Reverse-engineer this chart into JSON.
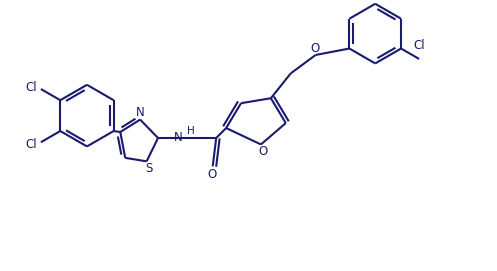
{
  "bg_color": "#FFFFFF",
  "line_color": "#1a1a6e",
  "line_width": 1.5,
  "font_size": 8.5,
  "xlim": [
    0,
    10
  ],
  "ylim": [
    0,
    5.4
  ]
}
